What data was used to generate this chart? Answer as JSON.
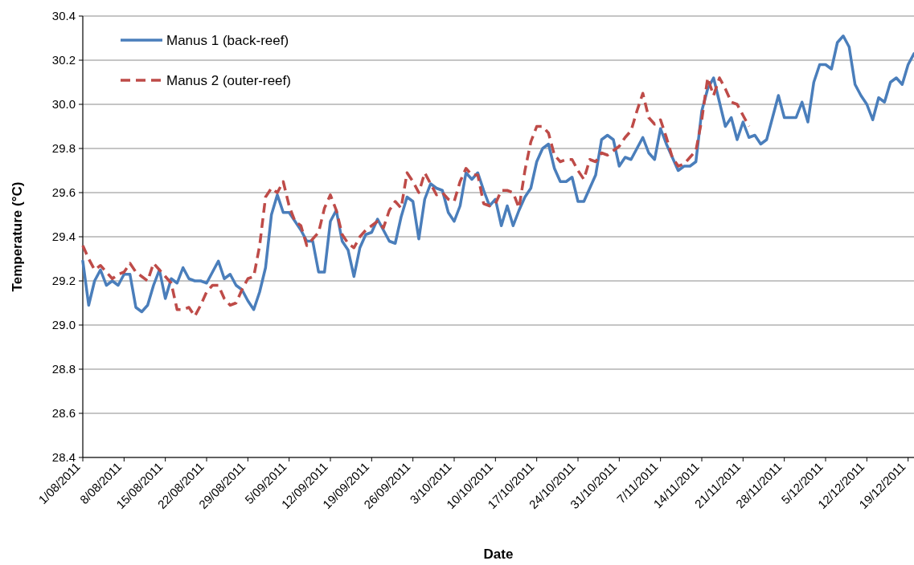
{
  "chart_data": {
    "type": "line",
    "xlabel": "Date",
    "ylabel": "Temperature (°C)",
    "x": [
      "2011-08-01",
      "2011-08-02",
      "2011-08-03",
      "2011-08-04",
      "2011-08-05",
      "2011-08-06",
      "2011-08-07",
      "2011-08-08",
      "2011-08-09",
      "2011-08-10",
      "2011-08-11",
      "2011-08-12",
      "2011-08-13",
      "2011-08-14",
      "2011-08-15",
      "2011-08-16",
      "2011-08-17",
      "2011-08-18",
      "2011-08-19",
      "2011-08-20",
      "2011-08-21",
      "2011-08-22",
      "2011-08-23",
      "2011-08-24",
      "2011-08-25",
      "2011-08-26",
      "2011-08-27",
      "2011-08-28",
      "2011-08-29",
      "2011-08-30",
      "2011-08-31",
      "2011-09-01",
      "2011-09-02",
      "2011-09-03",
      "2011-09-04",
      "2011-09-05",
      "2011-09-06",
      "2011-09-07",
      "2011-09-08",
      "2011-09-09",
      "2011-09-10",
      "2011-09-11",
      "2011-09-12",
      "2011-09-13",
      "2011-09-14",
      "2011-09-15",
      "2011-09-16",
      "2011-09-17",
      "2011-09-18",
      "2011-09-19",
      "2011-09-20",
      "2011-09-21",
      "2011-09-22",
      "2011-09-23",
      "2011-09-24",
      "2011-09-25",
      "2011-09-26",
      "2011-09-27",
      "2011-09-28",
      "2011-09-29",
      "2011-09-30",
      "2011-10-01",
      "2011-10-02",
      "2011-10-03",
      "2011-10-04",
      "2011-10-05",
      "2011-10-06",
      "2011-10-07",
      "2011-10-08",
      "2011-10-09",
      "2011-10-10",
      "2011-10-11",
      "2011-10-12",
      "2011-10-13",
      "2011-10-14",
      "2011-10-15",
      "2011-10-16",
      "2011-10-17",
      "2011-10-18",
      "2011-10-19",
      "2011-10-20",
      "2011-10-21",
      "2011-10-22",
      "2011-10-23",
      "2011-10-24",
      "2011-10-25",
      "2011-10-26",
      "2011-10-27",
      "2011-10-28",
      "2011-10-29",
      "2011-10-30",
      "2011-10-31",
      "2011-11-01",
      "2011-11-02",
      "2011-11-03",
      "2011-11-04",
      "2011-11-05",
      "2011-11-06",
      "2011-11-07",
      "2011-11-08",
      "2011-11-09",
      "2011-11-10",
      "2011-11-11",
      "2011-11-12",
      "2011-11-13",
      "2011-11-14",
      "2011-11-15",
      "2011-11-16",
      "2011-11-17",
      "2011-11-18",
      "2011-11-19",
      "2011-11-20",
      "2011-11-21",
      "2011-11-22",
      "2011-11-23",
      "2011-11-24",
      "2011-11-25",
      "2011-11-26",
      "2011-11-27",
      "2011-11-28",
      "2011-11-29",
      "2011-11-30",
      "2011-12-01",
      "2011-12-02",
      "2011-12-03",
      "2011-12-04",
      "2011-12-05",
      "2011-12-06",
      "2011-12-07",
      "2011-12-08",
      "2011-12-09",
      "2011-12-10",
      "2011-12-11",
      "2011-12-12",
      "2011-12-13",
      "2011-12-14",
      "2011-12-15",
      "2011-12-16",
      "2011-12-17",
      "2011-12-18",
      "2011-12-19",
      "2011-12-20"
    ],
    "series": [
      {
        "name": "Manus 1 (back-reef)",
        "color": "#4a7ebb",
        "line_style": "solid",
        "values": [
          29.29,
          29.09,
          29.2,
          29.25,
          29.18,
          29.2,
          29.18,
          29.23,
          29.23,
          29.08,
          29.06,
          29.09,
          29.18,
          29.25,
          29.12,
          29.21,
          29.19,
          29.26,
          29.21,
          29.2,
          29.2,
          29.19,
          29.24,
          29.29,
          29.21,
          29.23,
          29.18,
          29.16,
          29.11,
          29.07,
          29.15,
          29.26,
          29.5,
          29.59,
          29.51,
          29.51,
          29.47,
          29.43,
          29.38,
          29.38,
          29.24,
          29.24,
          29.47,
          29.52,
          29.38,
          29.34,
          29.22,
          29.35,
          29.41,
          29.42,
          29.48,
          29.43,
          29.38,
          29.37,
          29.49,
          29.58,
          29.56,
          29.39,
          29.57,
          29.64,
          29.62,
          29.61,
          29.51,
          29.47,
          29.54,
          29.69,
          29.66,
          29.69,
          29.61,
          29.54,
          29.57,
          29.45,
          29.54,
          29.45,
          29.52,
          29.58,
          29.62,
          29.74,
          29.8,
          29.82,
          29.71,
          29.65,
          29.65,
          29.67,
          29.56,
          29.56,
          29.62,
          29.68,
          29.84,
          29.86,
          29.84,
          29.72,
          29.76,
          29.75,
          29.8,
          29.85,
          29.78,
          29.75,
          29.89,
          29.82,
          29.76,
          29.7,
          29.72,
          29.72,
          29.74,
          29.97,
          30.07,
          30.12,
          30.01,
          29.9,
          29.94,
          29.84,
          29.92,
          29.85,
          29.86,
          29.82,
          29.84,
          29.94,
          30.04,
          29.94,
          29.94,
          29.94,
          30.01,
          29.92,
          30.1,
          30.18,
          30.18,
          30.16,
          30.28,
          30.31,
          30.26,
          30.09,
          30.04,
          30.0,
          29.93,
          30.03,
          30.01,
          30.1,
          30.12,
          30.09,
          30.18,
          30.23
        ]
      },
      {
        "name": "Manus 2 (outer-reef)",
        "color": "#be4b48",
        "line_style": "dashed",
        "values": [
          29.36,
          29.3,
          29.25,
          29.27,
          29.24,
          29.21,
          29.23,
          29.24,
          29.28,
          29.24,
          29.22,
          29.2,
          29.28,
          29.25,
          29.22,
          29.19,
          29.07,
          29.07,
          29.08,
          29.04,
          29.09,
          29.15,
          29.18,
          29.18,
          29.12,
          29.09,
          29.1,
          29.16,
          29.21,
          29.22,
          29.36,
          29.58,
          29.62,
          29.6,
          29.65,
          29.54,
          29.47,
          29.45,
          29.36,
          29.39,
          29.42,
          29.53,
          29.59,
          29.52,
          29.41,
          29.37,
          29.35,
          29.4,
          29.43,
          29.45,
          29.47,
          29.44,
          29.52,
          29.56,
          29.53,
          29.69,
          29.65,
          29.6,
          29.69,
          29.64,
          29.59,
          29.6,
          29.57,
          29.56,
          29.65,
          29.71,
          29.68,
          29.68,
          29.55,
          29.54,
          29.55,
          29.61,
          29.61,
          29.6,
          29.53,
          29.7,
          29.83,
          29.9,
          29.9,
          29.87,
          29.77,
          29.74,
          29.75,
          29.75,
          29.7,
          29.66,
          29.75,
          29.74,
          29.78,
          29.77,
          29.79,
          29.81,
          29.85,
          29.88,
          29.97,
          30.05,
          29.94,
          29.91,
          29.93,
          29.85,
          29.76,
          29.72,
          29.73,
          29.76,
          29.79,
          29.93,
          30.12,
          30.04,
          30.12,
          30.07,
          30.01,
          30.0,
          29.95,
          29.9,
          null,
          null,
          null,
          null,
          null,
          null,
          null,
          null,
          null,
          null,
          null,
          null,
          null,
          null,
          null,
          null,
          null,
          null,
          null,
          null,
          null,
          null,
          null,
          null,
          null,
          null,
          null,
          null
        ]
      }
    ],
    "xlim": [
      "2011-08-01",
      "2011-12-20"
    ],
    "xticks": [
      {
        "value": "2011-08-01",
        "label": "1/08/2011"
      },
      {
        "value": "2011-08-08",
        "label": "8/08/2011"
      },
      {
        "value": "2011-08-15",
        "label": "15/08/2011"
      },
      {
        "value": "2011-08-22",
        "label": "22/08/2011"
      },
      {
        "value": "2011-08-29",
        "label": "29/08/2011"
      },
      {
        "value": "2011-09-05",
        "label": "5/09/2011"
      },
      {
        "value": "2011-09-12",
        "label": "12/09/2011"
      },
      {
        "value": "2011-09-19",
        "label": "19/09/2011"
      },
      {
        "value": "2011-09-26",
        "label": "26/09/2011"
      },
      {
        "value": "2011-10-03",
        "label": "3/10/2011"
      },
      {
        "value": "2011-10-10",
        "label": "10/10/2011"
      },
      {
        "value": "2011-10-17",
        "label": "17/10/2011"
      },
      {
        "value": "2011-10-24",
        "label": "24/10/2011"
      },
      {
        "value": "2011-10-31",
        "label": "31/10/2011"
      },
      {
        "value": "2011-11-07",
        "label": "7/11/2011"
      },
      {
        "value": "2011-11-14",
        "label": "14/11/2011"
      },
      {
        "value": "2011-11-21",
        "label": "21/11/2011"
      },
      {
        "value": "2011-11-28",
        "label": "28/11/2011"
      },
      {
        "value": "2011-12-05",
        "label": "5/12/2011"
      },
      {
        "value": "2011-12-12",
        "label": "12/12/2011"
      },
      {
        "value": "2011-12-19",
        "label": "19/12/2011"
      }
    ],
    "ylim": [
      28.4,
      30.4
    ],
    "yticks": [
      {
        "value": 28.4,
        "label": "28.4"
      },
      {
        "value": 28.6,
        "label": "28.6"
      },
      {
        "value": 28.8,
        "label": "28.8"
      },
      {
        "value": 29.0,
        "label": "29.0"
      },
      {
        "value": 29.2,
        "label": "29.2"
      },
      {
        "value": 29.4,
        "label": "29.4"
      },
      {
        "value": 29.6,
        "label": "29.6"
      },
      {
        "value": 29.8,
        "label": "29.8"
      },
      {
        "value": 30.0,
        "label": "30.0"
      },
      {
        "value": 30.2,
        "label": "30.2"
      },
      {
        "value": 30.4,
        "label": "30.4"
      }
    ],
    "grid": "y",
    "legend": "top left",
    "marker": "none"
  }
}
